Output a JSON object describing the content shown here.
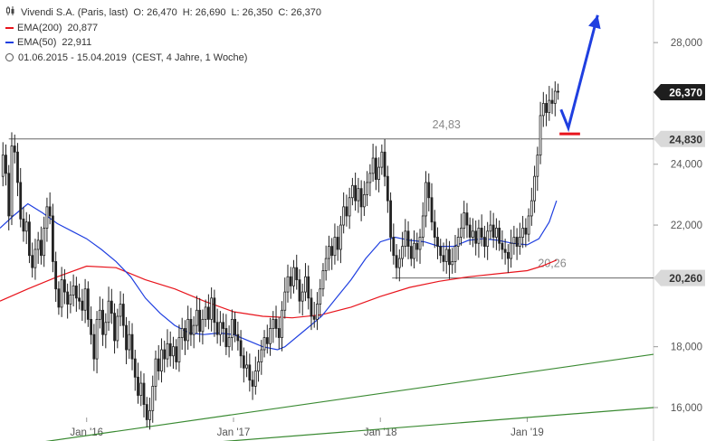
{
  "legend": {
    "title": "Vivendi S.A. (Paris, last)",
    "ohlc": {
      "open": "O: 26,470",
      "high": "H: 26,690",
      "low": "L: 26,350",
      "close": "C: 26,370"
    },
    "ema200": {
      "label": "EMA(200)",
      "value": "20,877",
      "color": "#e8141c"
    },
    "ema50": {
      "label": "EMA(50)",
      "value": "22,911",
      "color": "#1f3fe0"
    },
    "range": "01.06.2015 - 15.04.2019",
    "range_note": "(CEST, 4 Jahre, 1 Woche)"
  },
  "chart_data": {
    "type": "candlestick",
    "y_axis": {
      "range": [
        14.9,
        29.4
      ],
      "ticks": [
        16,
        18,
        22,
        24,
        28
      ],
      "tick_labels": [
        "16,000",
        "18,000",
        "22,000",
        "24,000",
        "28,000"
      ]
    },
    "x_axis": {
      "ticks": [
        2016.0,
        2017.0,
        2018.0,
        2019.0
      ],
      "tick_labels": [
        "Jan '16",
        "Jan '17",
        "Jan '18",
        "Jan '19"
      ],
      "range": [
        2015.41,
        2019.86
      ]
    },
    "price_tags": [
      {
        "value": 26.37,
        "label": "26,370",
        "style": "dark"
      },
      {
        "value": 24.83,
        "label": "24,830",
        "style": "gray"
      },
      {
        "value": 20.26,
        "label": "20,260",
        "style": "gray"
      }
    ],
    "horizontal_lines": [
      {
        "value": 24.83,
        "from": 2015.47,
        "label": "24,83",
        "label_x": 2018.45
      },
      {
        "value": 20.26,
        "from": 2018.08,
        "label": "20,26",
        "label_x": 2019.17
      }
    ],
    "trendlines": [
      {
        "name": "upper",
        "from": [
          2015.6,
          14.8
        ],
        "to": [
          2019.86,
          17.75
        ],
        "color": "#3a8a32"
      },
      {
        "name": "lower",
        "from": [
          2015.4,
          14.3
        ],
        "to": [
          2019.86,
          16.0
        ],
        "color": "#3a8a32"
      }
    ],
    "projection": {
      "points": [
        [
          2019.23,
          25.8
        ],
        [
          2019.28,
          25.2
        ],
        [
          2019.48,
          28.9
        ]
      ],
      "color": "#1f3fe0"
    },
    "support_marker": {
      "value": 25.0,
      "from": 2019.22,
      "to": 2019.36,
      "color": "#e8141c"
    },
    "series": [
      {
        "name": "EMA(200)",
        "color": "#e8141c",
        "points": [
          [
            2015.41,
            19.5
          ],
          [
            2015.6,
            19.9
          ],
          [
            2015.8,
            20.3
          ],
          [
            2016.0,
            20.65
          ],
          [
            2016.2,
            20.6
          ],
          [
            2016.4,
            20.2
          ],
          [
            2016.6,
            19.9
          ],
          [
            2016.8,
            19.5
          ],
          [
            2017.0,
            19.15
          ],
          [
            2017.2,
            19.0
          ],
          [
            2017.4,
            18.95
          ],
          [
            2017.6,
            19.05
          ],
          [
            2017.8,
            19.3
          ],
          [
            2018.0,
            19.65
          ],
          [
            2018.2,
            19.95
          ],
          [
            2018.4,
            20.15
          ],
          [
            2018.6,
            20.3
          ],
          [
            2018.8,
            20.4
          ],
          [
            2019.0,
            20.5
          ],
          [
            2019.1,
            20.65
          ],
          [
            2019.2,
            20.85
          ]
        ]
      },
      {
        "name": "EMA(50)",
        "color": "#1f3fe0",
        "points": [
          [
            2015.41,
            21.9
          ],
          [
            2015.5,
            22.3
          ],
          [
            2015.6,
            22.7
          ],
          [
            2015.7,
            22.4
          ],
          [
            2015.8,
            22.05
          ],
          [
            2015.9,
            21.8
          ],
          [
            2016.0,
            21.55
          ],
          [
            2016.1,
            21.2
          ],
          [
            2016.2,
            20.8
          ],
          [
            2016.3,
            20.3
          ],
          [
            2016.4,
            19.6
          ],
          [
            2016.5,
            19.1
          ],
          [
            2016.6,
            18.7
          ],
          [
            2016.7,
            18.45
          ],
          [
            2016.8,
            18.4
          ],
          [
            2016.9,
            18.45
          ],
          [
            2017.0,
            18.4
          ],
          [
            2017.1,
            18.2
          ],
          [
            2017.2,
            18.0
          ],
          [
            2017.3,
            17.9
          ],
          [
            2017.35,
            18.0
          ],
          [
            2017.5,
            18.6
          ],
          [
            2017.6,
            19.0
          ],
          [
            2017.7,
            19.6
          ],
          [
            2017.8,
            20.2
          ],
          [
            2017.9,
            20.9
          ],
          [
            2018.0,
            21.45
          ],
          [
            2018.1,
            21.6
          ],
          [
            2018.2,
            21.5
          ],
          [
            2018.3,
            21.45
          ],
          [
            2018.4,
            21.3
          ],
          [
            2018.5,
            21.3
          ],
          [
            2018.6,
            21.5
          ],
          [
            2018.7,
            21.55
          ],
          [
            2018.8,
            21.5
          ],
          [
            2018.9,
            21.4
          ],
          [
            2019.0,
            21.35
          ],
          [
            2019.08,
            21.55
          ],
          [
            2019.15,
            22.1
          ],
          [
            2019.2,
            22.8
          ]
        ]
      },
      {
        "name": "price",
        "points": [
          [
            2015.41,
            23.6
          ],
          [
            2015.43,
            24.3
          ],
          [
            2015.45,
            23.7
          ],
          [
            2015.47,
            22.3
          ],
          [
            2015.49,
            24.6
          ],
          [
            2015.51,
            24.4
          ],
          [
            2015.53,
            23.4
          ],
          [
            2015.55,
            22.2
          ],
          [
            2015.57,
            21.8
          ],
          [
            2015.59,
            22.1
          ],
          [
            2015.61,
            21.0
          ],
          [
            2015.63,
            20.6
          ],
          [
            2015.65,
            21.2
          ],
          [
            2015.67,
            21.5
          ],
          [
            2015.69,
            21.0
          ],
          [
            2015.71,
            21.9
          ],
          [
            2015.73,
            22.6
          ],
          [
            2015.75,
            22.3
          ],
          [
            2015.77,
            20.8
          ],
          [
            2015.79,
            19.9
          ],
          [
            2015.81,
            19.3
          ],
          [
            2015.83,
            20.2
          ],
          [
            2015.85,
            19.8
          ],
          [
            2015.87,
            19.4
          ],
          [
            2015.89,
            19.7
          ],
          [
            2015.91,
            20.0
          ],
          [
            2015.93,
            19.6
          ],
          [
            2015.95,
            19.5
          ],
          [
            2015.97,
            19.2
          ],
          [
            2015.99,
            19.9
          ],
          [
            2016.01,
            18.9
          ],
          [
            2016.03,
            18.4
          ],
          [
            2016.05,
            17.6
          ],
          [
            2016.07,
            18.9
          ],
          [
            2016.09,
            19.2
          ],
          [
            2016.11,
            18.4
          ],
          [
            2016.13,
            18.8
          ],
          [
            2016.15,
            19.5
          ],
          [
            2016.17,
            19.1
          ],
          [
            2016.19,
            18.2
          ],
          [
            2016.21,
            19.0
          ],
          [
            2016.23,
            19.4
          ],
          [
            2016.25,
            18.7
          ],
          [
            2016.27,
            17.9
          ],
          [
            2016.29,
            18.4
          ],
          [
            2016.31,
            17.6
          ],
          [
            2016.33,
            17.0
          ],
          [
            2016.35,
            16.4
          ],
          [
            2016.37,
            16.8
          ],
          [
            2016.39,
            16.1
          ],
          [
            2016.41,
            15.6
          ],
          [
            2016.43,
            15.9
          ],
          [
            2016.45,
            16.7
          ],
          [
            2016.47,
            17.6
          ],
          [
            2016.49,
            17.2
          ],
          [
            2016.51,
            17.9
          ],
          [
            2016.53,
            17.6
          ],
          [
            2016.55,
            18.1
          ],
          [
            2016.57,
            17.7
          ],
          [
            2016.59,
            18.0
          ],
          [
            2016.61,
            17.5
          ],
          [
            2016.63,
            18.3
          ],
          [
            2016.65,
            18.6
          ],
          [
            2016.67,
            18.2
          ],
          [
            2016.69,
            18.9
          ],
          [
            2016.71,
            18.4
          ],
          [
            2016.73,
            18.7
          ],
          [
            2016.75,
            19.2
          ],
          [
            2016.77,
            18.5
          ],
          [
            2016.79,
            18.9
          ],
          [
            2016.81,
            19.3
          ],
          [
            2016.83,
            18.9
          ],
          [
            2016.85,
            19.6
          ],
          [
            2016.87,
            18.8
          ],
          [
            2016.89,
            18.4
          ],
          [
            2016.91,
            18.8
          ],
          [
            2016.93,
            18.6
          ],
          [
            2016.95,
            18.0
          ],
          [
            2016.97,
            18.3
          ],
          [
            2016.99,
            18.9
          ],
          [
            2017.01,
            18.4
          ],
          [
            2017.03,
            18.2
          ],
          [
            2017.05,
            17.7
          ],
          [
            2017.07,
            17.3
          ],
          [
            2017.09,
            17.4
          ],
          [
            2017.11,
            16.9
          ],
          [
            2017.13,
            16.7
          ],
          [
            2017.15,
            17.2
          ],
          [
            2017.17,
            17.5
          ],
          [
            2017.19,
            17.9
          ],
          [
            2017.21,
            18.3
          ],
          [
            2017.23,
            18.1
          ],
          [
            2017.25,
            18.6
          ],
          [
            2017.27,
            18.9
          ],
          [
            2017.29,
            18.6
          ],
          [
            2017.31,
            18.3
          ],
          [
            2017.33,
            19.2
          ],
          [
            2017.35,
            19.8
          ],
          [
            2017.37,
            20.3
          ],
          [
            2017.39,
            20.0
          ],
          [
            2017.41,
            20.6
          ],
          [
            2017.43,
            20.2
          ],
          [
            2017.45,
            19.5
          ],
          [
            2017.47,
            19.8
          ],
          [
            2017.49,
            20.3
          ],
          [
            2017.51,
            19.6
          ],
          [
            2017.53,
            19.0
          ],
          [
            2017.55,
            18.9
          ],
          [
            2017.57,
            19.4
          ],
          [
            2017.59,
            19.9
          ],
          [
            2017.61,
            20.5
          ],
          [
            2017.63,
            20.9
          ],
          [
            2017.65,
            21.3
          ],
          [
            2017.67,
            21.0
          ],
          [
            2017.69,
            21.6
          ],
          [
            2017.71,
            21.2
          ],
          [
            2017.73,
            22.0
          ],
          [
            2017.75,
            22.6
          ],
          [
            2017.77,
            22.3
          ],
          [
            2017.79,
            22.9
          ],
          [
            2017.81,
            23.3
          ],
          [
            2017.83,
            22.8
          ],
          [
            2017.85,
            23.2
          ],
          [
            2017.87,
            22.6
          ],
          [
            2017.89,
            23.0
          ],
          [
            2017.91,
            23.4
          ],
          [
            2017.93,
            23.7
          ],
          [
            2017.95,
            24.2
          ],
          [
            2017.97,
            23.5
          ],
          [
            2017.99,
            23.9
          ],
          [
            2018.01,
            24.4
          ],
          [
            2018.03,
            23.6
          ],
          [
            2018.05,
            22.8
          ],
          [
            2018.07,
            21.6
          ],
          [
            2018.09,
            21.0
          ],
          [
            2018.11,
            20.6
          ],
          [
            2018.13,
            20.9
          ],
          [
            2018.15,
            21.3
          ],
          [
            2018.17,
            21.8
          ],
          [
            2018.19,
            21.3
          ],
          [
            2018.21,
            20.9
          ],
          [
            2018.23,
            21.4
          ],
          [
            2018.25,
            21.2
          ],
          [
            2018.27,
            21.6
          ],
          [
            2018.29,
            22.3
          ],
          [
            2018.31,
            23.4
          ],
          [
            2018.33,
            22.9
          ],
          [
            2018.35,
            22.1
          ],
          [
            2018.37,
            21.6
          ],
          [
            2018.39,
            21.3
          ],
          [
            2018.41,
            21.0
          ],
          [
            2018.43,
            20.8
          ],
          [
            2018.45,
            21.2
          ],
          [
            2018.47,
            20.7
          ],
          [
            2018.49,
            20.8
          ],
          [
            2018.51,
            21.3
          ],
          [
            2018.53,
            21.6
          ],
          [
            2018.55,
            21.9
          ],
          [
            2018.57,
            22.4
          ],
          [
            2018.59,
            22.0
          ],
          [
            2018.61,
            21.6
          ],
          [
            2018.63,
            21.8
          ],
          [
            2018.65,
            21.4
          ],
          [
            2018.67,
            21.9
          ],
          [
            2018.69,
            21.6
          ],
          [
            2018.71,
            21.3
          ],
          [
            2018.73,
            21.8
          ],
          [
            2018.75,
            22.0
          ],
          [
            2018.77,
            21.6
          ],
          [
            2018.79,
            21.9
          ],
          [
            2018.81,
            21.4
          ],
          [
            2018.83,
            21.2
          ],
          [
            2018.85,
            21.1
          ],
          [
            2018.87,
            20.9
          ],
          [
            2018.89,
            21.4
          ],
          [
            2018.91,
            21.6
          ],
          [
            2018.93,
            21.3
          ],
          [
            2018.95,
            21.6
          ],
          [
            2018.97,
            21.9
          ],
          [
            2018.99,
            21.7
          ],
          [
            2019.01,
            22.3
          ],
          [
            2019.03,
            22.8
          ],
          [
            2019.05,
            23.6
          ],
          [
            2019.07,
            24.3
          ],
          [
            2019.09,
            25.6
          ],
          [
            2019.11,
            26.0
          ],
          [
            2019.13,
            25.7
          ],
          [
            2019.15,
            26.1
          ],
          [
            2019.17,
            26.0
          ],
          [
            2019.19,
            26.4
          ],
          [
            2019.21,
            26.37
          ]
        ]
      }
    ]
  }
}
